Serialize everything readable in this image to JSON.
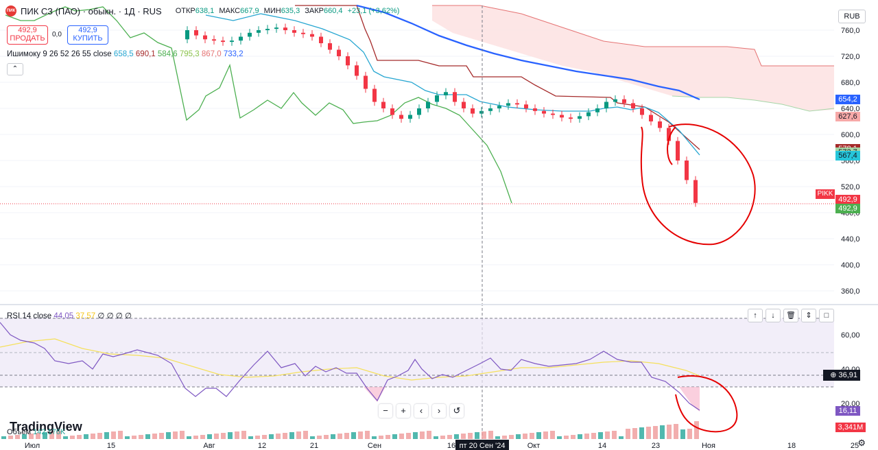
{
  "header": {
    "logo_text": "ПИК",
    "title": "ПИК СЗ (ПАО) · обыкн. · 1Д · RUS",
    "ohlc": {
      "open_label": "ОТКР",
      "open": "638,1",
      "high_label": "МАКС",
      "high": "667,9",
      "low_label": "МИН",
      "low": "635,3",
      "close_label": "ЗАКР",
      "close": "660,4",
      "change": "+23,1 (+3,62%)"
    }
  },
  "trade": {
    "sell_price": "492,9",
    "sell_label": "ПРОДАТЬ",
    "spread": "0,0",
    "buy_price": "492,9",
    "buy_label": "КУПИТЬ"
  },
  "ichimoku": {
    "label": "Ишимоку 9 26 52 26 55 close",
    "v1": "658,5",
    "v2": "690,1",
    "v3": "584,6",
    "v4": "795,3",
    "v5": "867,0",
    "v6": "733,2",
    "c1": "#26a6d1",
    "c2": "#a52a2a",
    "c3": "#4caf50",
    "c4": "#a5d6a7",
    "c5": "#ef9a9a",
    "c6": "#2962ff"
  },
  "rsi": {
    "label": "RSI 14 close",
    "value": "44,05",
    "ma": "37,57",
    "zeros": "∅ ∅ ∅ ∅"
  },
  "volume": {
    "label": "Объем",
    "value": "142,176K"
  },
  "currency": "RUB",
  "price_axis": {
    "ticks": [
      "760,0",
      "720,0",
      "680,0",
      "640,0",
      "600,0",
      "560,0",
      "520,0",
      "480,0",
      "440,0",
      "400,0",
      "360,0"
    ],
    "labels": [
      {
        "text": "654,2",
        "bg": "#2962ff",
        "price": 654.2
      },
      {
        "text": "627,6",
        "bg": "#f7a9a8",
        "fg": "#131722",
        "price": 627.6
      },
      {
        "text": "578,1",
        "bg": "#a52a2a",
        "price": 578.1
      },
      {
        "text": "572,7",
        "bg": "#a5d6a7",
        "fg": "#131722",
        "price": 572.7
      },
      {
        "text": "567,4",
        "bg": "#26c6da",
        "fg": "#131722",
        "price": 567.4
      },
      {
        "text": "492,9",
        "bg": "#f23645",
        "price": 500
      },
      {
        "text": "492,9",
        "bg": "#4caf50",
        "price": 486
      }
    ],
    "symbol_tag": "PIKK"
  },
  "rsi_axis": {
    "ticks": [
      "60,00",
      "40,00",
      "20,00"
    ],
    "current": "36,91",
    "ma_label": "16,11"
  },
  "volume_label": "3,341M",
  "time_axis": {
    "ticks": [
      "Июл",
      "15",
      "Авг",
      "12",
      "21",
      "Сен",
      "16",
      "Окт",
      "14",
      "23",
      "Ноя",
      "18",
      "25"
    ],
    "crosshair_label": "пт 20 Сен '24"
  },
  "chart_data": {
    "type": "line",
    "series": [
      {
        "name": "Ишимоку",
        "values": [
          658.5,
          690.1,
          584.6,
          795.3,
          867.0,
          733.2
        ]
      }
    ]
  },
  "watermark": "TradingView",
  "nav": {
    "zoom_out": "−",
    "zoom_in": "+",
    "back": "‹",
    "forward": "›",
    "reset": "↺"
  }
}
